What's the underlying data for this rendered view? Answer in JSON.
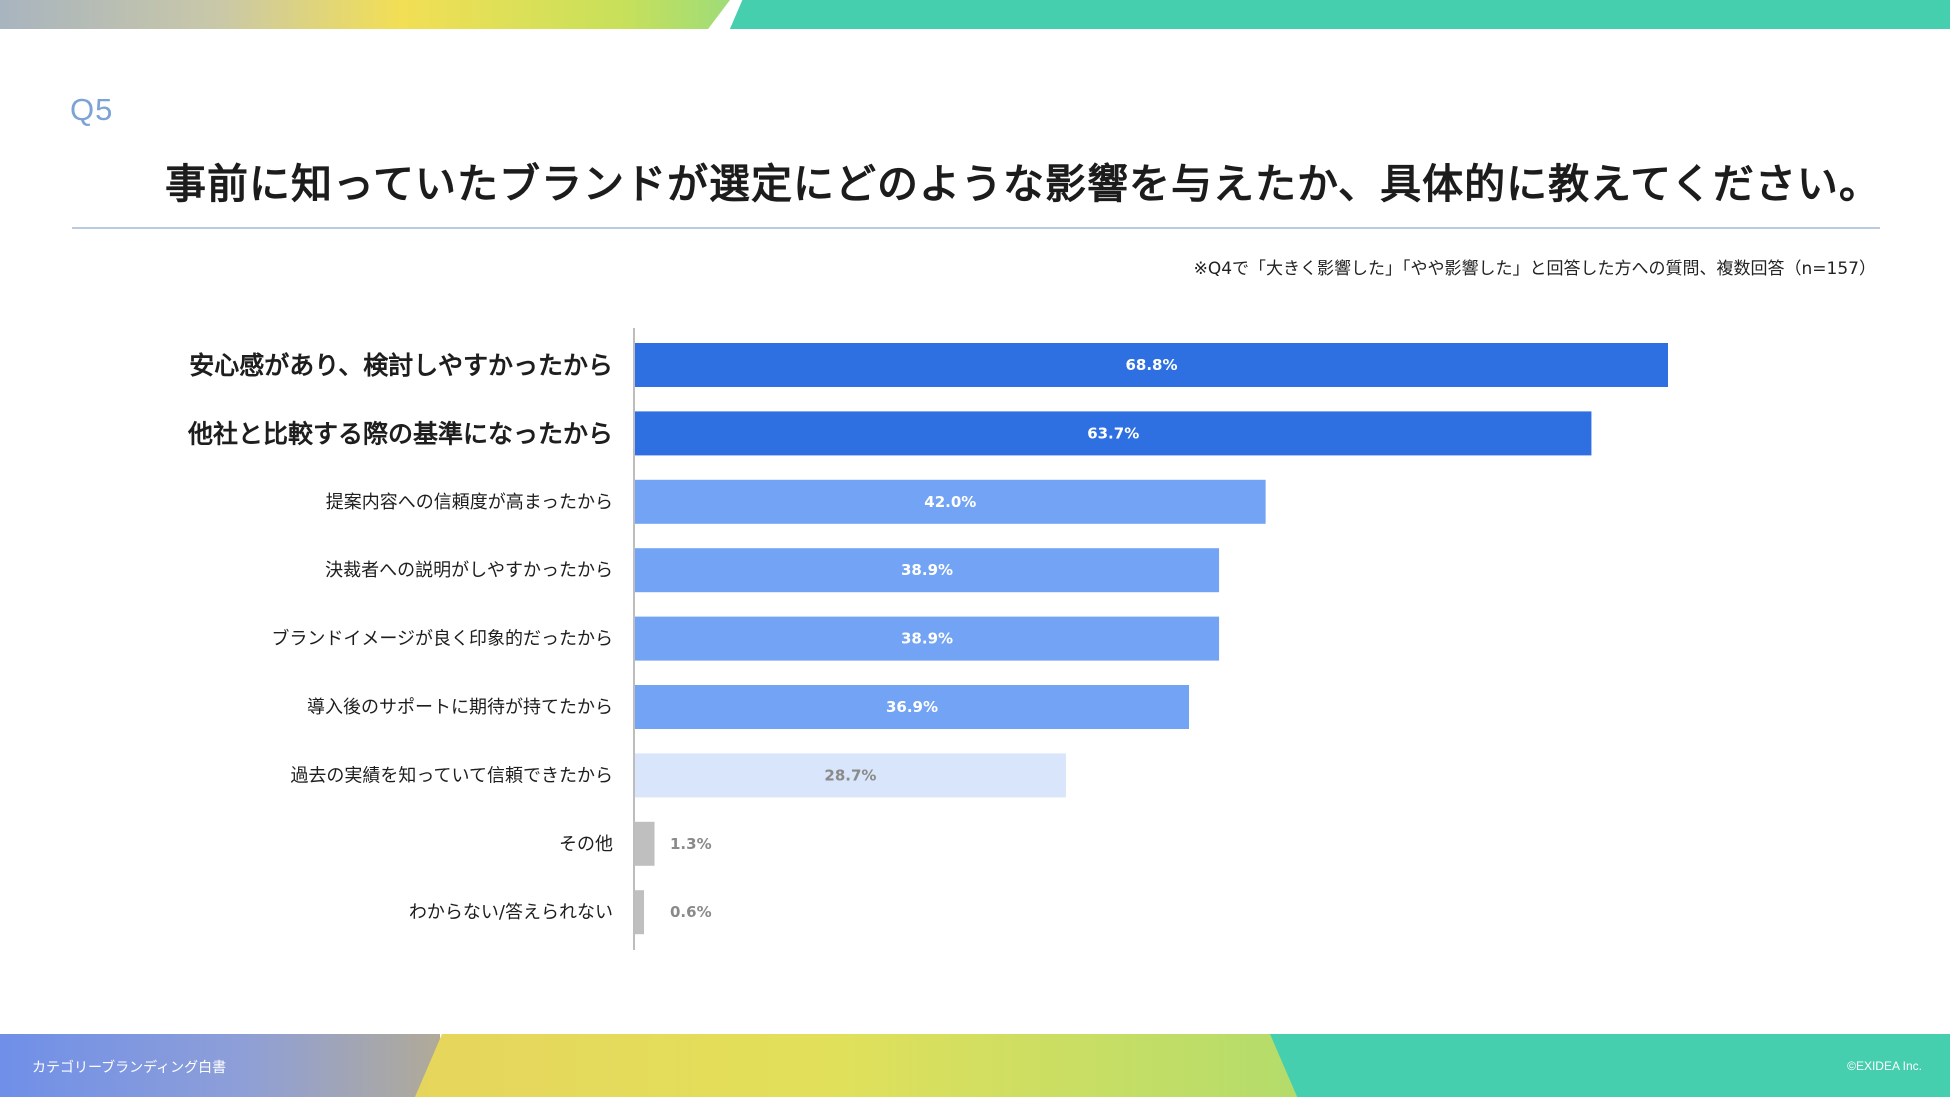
{
  "header": {
    "question_label": "Q5",
    "title": "事前に知っていたブランドが選定にどのような影響を与えたか、具体的に教えてください。",
    "note": "※Q4で「大きく影響した」「やや影響した」と回答した方への質問、複数回答（n=157）"
  },
  "footer": {
    "left": "カテゴリーブランディング白書",
    "right": "©EXIDEA Inc."
  },
  "colors": {
    "primary_bar": "#2e6fe1",
    "secondary_bar": "#73a3f4",
    "light_bar": "#d9e5fa",
    "gray_bar": "#bfbfbf",
    "accent_teal": "#45cfae",
    "q_label": "#7da3d6"
  },
  "chart_data": {
    "type": "bar",
    "orientation": "horizontal",
    "unit": "%",
    "xlim": [
      0,
      100
    ],
    "grid": false,
    "categories": [
      "安心感があり、検討しやすかったから",
      "他社と比較する際の基準になったから",
      "提案内容への信頼度が高まったから",
      "決裁者への説明がしやすかったから",
      "ブランドイメージが良く印象的だったから",
      "導入後のサポートに期待が持てたから",
      "過去の実績を知っていて信頼できたから",
      "その他",
      "わからない/答えられない"
    ],
    "values": [
      68.8,
      63.7,
      42.0,
      38.9,
      38.9,
      36.9,
      28.7,
      1.3,
      0.6
    ],
    "value_labels": [
      "68.8%",
      "63.7%",
      "42.0%",
      "38.9%",
      "38.9%",
      "36.9%",
      "28.7%",
      "1.3%",
      "0.6%"
    ]
  }
}
